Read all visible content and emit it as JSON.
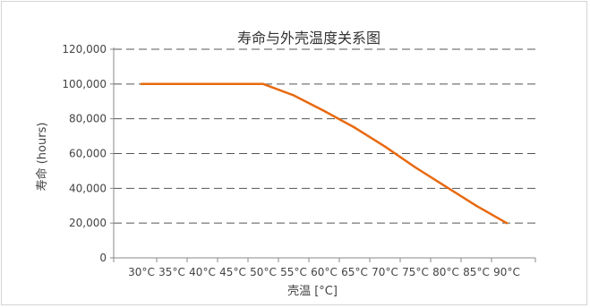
{
  "chart_data": {
    "type": "line",
    "title": "寿命与外壳温度关系图",
    "xlabel": "壳温 [°C]",
    "ylabel": "寿命 (hours)",
    "categories": [
      "30°C",
      "35°C",
      "40°C",
      "45°C",
      "50°C",
      "55°C",
      "60°C",
      "65°C",
      "70°C",
      "75°C",
      "80°C",
      "85°C",
      "90°C"
    ],
    "x": [
      30,
      35,
      40,
      45,
      50,
      55,
      60,
      65,
      70,
      75,
      80,
      85,
      90
    ],
    "series": [
      {
        "values": [
          100000,
          100000,
          100000,
          100000,
          100000,
          93500,
          84500,
          75000,
          64000,
          52000,
          41000,
          30000,
          20000
        ]
      }
    ],
    "ylim": [
      0,
      120000
    ],
    "yticks": [
      0,
      20000,
      40000,
      60000,
      80000,
      100000,
      120000
    ],
    "ytick_labels": [
      "0",
      "20,000",
      "40,000",
      "60,000",
      "80,000",
      "100,000",
      "120,000"
    ],
    "grid": "horizontal-dashed",
    "colors": {
      "line": "#e8690f",
      "grid": "#555555",
      "axis": "#888888"
    }
  }
}
